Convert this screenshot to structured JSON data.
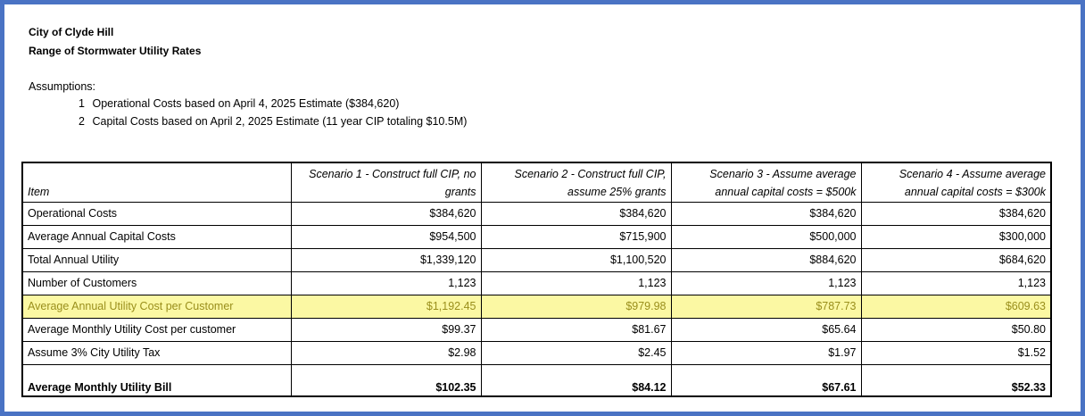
{
  "header": {
    "org": "City of Clyde Hill",
    "title": "Range of Stormwater Utility Rates"
  },
  "assumptions": {
    "heading": "Assumptions:",
    "items": [
      {
        "num": "1",
        "text": "Operational Costs based on April 4, 2025 Estimate ($384,620)"
      },
      {
        "num": "2",
        "text": "Capital Costs based on April 2, 2025 Estimate (11 year CIP totaling $10.5M)"
      }
    ]
  },
  "table": {
    "columns": [
      "Item",
      "Scenario 1 - Construct full CIP, no grants",
      "Scenario 2 - Construct full CIP, assume 25% grants",
      "Scenario 3 - Assume average annual capital costs = $500k",
      "Scenario 4 - Assume average annual capital costs = $300k"
    ],
    "rows": [
      {
        "item": "Operational Costs",
        "values": [
          "$384,620",
          "$384,620",
          "$384,620",
          "$384,620"
        ]
      },
      {
        "item": "Average Annual Capital Costs",
        "values": [
          "$954,500",
          "$715,900",
          "$500,000",
          "$300,000"
        ]
      },
      {
        "item": "Total Annual Utility",
        "values": [
          "$1,339,120",
          "$1,100,520",
          "$884,620",
          "$684,620"
        ]
      },
      {
        "item": "Number of Customers",
        "values": [
          "1,123",
          "1,123",
          "1,123",
          "1,123"
        ]
      },
      {
        "item": "Average Annual Utility Cost per Customer",
        "values": [
          "$1,192.45",
          "$979.98",
          "$787.73",
          "$609.63"
        ]
      },
      {
        "item": "Average Monthly Utility Cost per customer",
        "values": [
          "$99.37",
          "$81.67",
          "$65.64",
          "$50.80"
        ]
      },
      {
        "item": "Assume 3% City Utility Tax",
        "values": [
          "$2.98",
          "$2.45",
          "$1.97",
          "$1.52"
        ]
      },
      {
        "item": "Average Monthly Utility Bill",
        "values": [
          "$102.35",
          "$84.12",
          "$67.61",
          "$52.33"
        ]
      }
    ]
  },
  "colors": {
    "frame_border": "#4a73c4",
    "highlight_fill": "#fbf8a3",
    "highlight_text": "#9a8f1c"
  }
}
